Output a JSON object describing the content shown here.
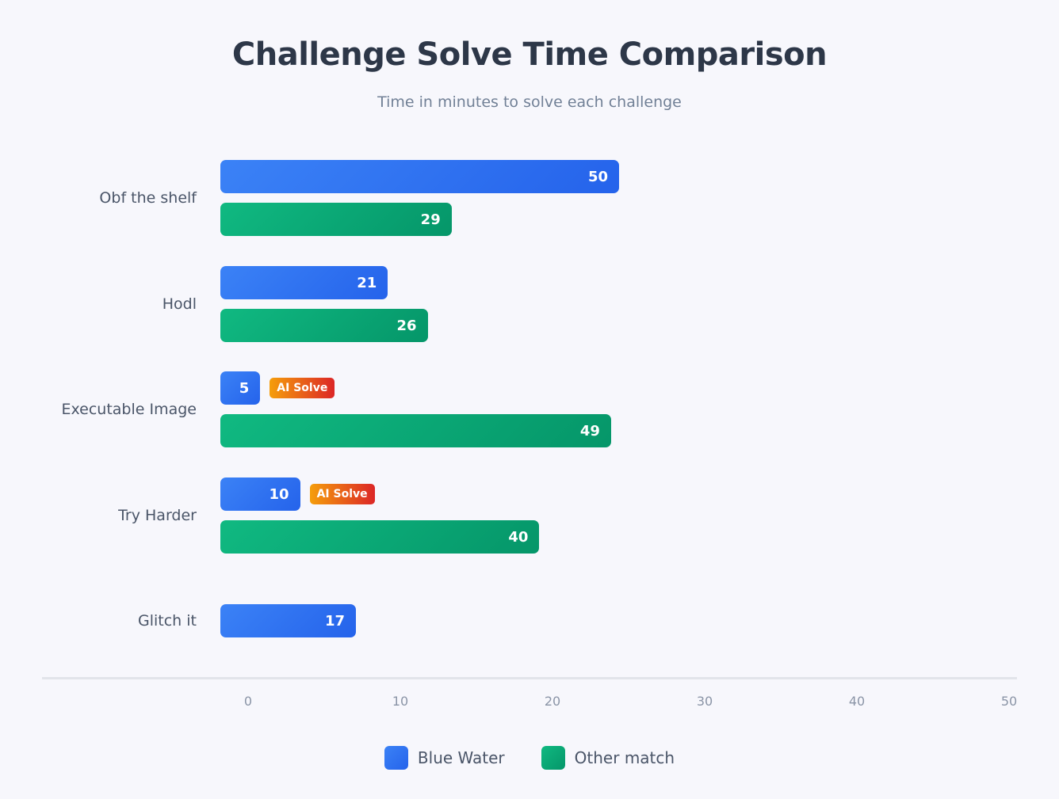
{
  "chart_data": {
    "type": "bar",
    "orientation": "horizontal",
    "title": "Challenge Solve Time Comparison",
    "subtitle": "Time in minutes to solve each challenge",
    "categories": [
      "Obf the shelf",
      "Hodl",
      "Executable Image",
      "Try Harder",
      "Glitch it"
    ],
    "series": [
      {
        "name": "Blue Water",
        "color": "#2563eb",
        "values": [
          50,
          21,
          5,
          10,
          17
        ],
        "badges": [
          null,
          null,
          "AI Solve",
          "AI Solve",
          null
        ]
      },
      {
        "name": "Other match",
        "color": "#059669",
        "values": [
          29,
          26,
          49,
          40,
          null
        ]
      }
    ],
    "xticks": [
      "0",
      "10",
      "20",
      "30",
      "40",
      "50"
    ],
    "xlim": [
      0,
      50
    ],
    "grid": false,
    "legend": "bottom-center",
    "badge_color": "#ea580c"
  }
}
